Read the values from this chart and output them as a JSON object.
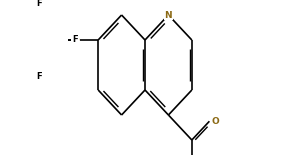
{
  "background_color": "#ffffff",
  "bond_color": "#000000",
  "atom_colors": {
    "N": "#8B6914",
    "O": "#8B6914",
    "F": "#000000"
  },
  "figsize": [
    2.9,
    1.55
  ],
  "dpi": 100,
  "lw": 1.2
}
